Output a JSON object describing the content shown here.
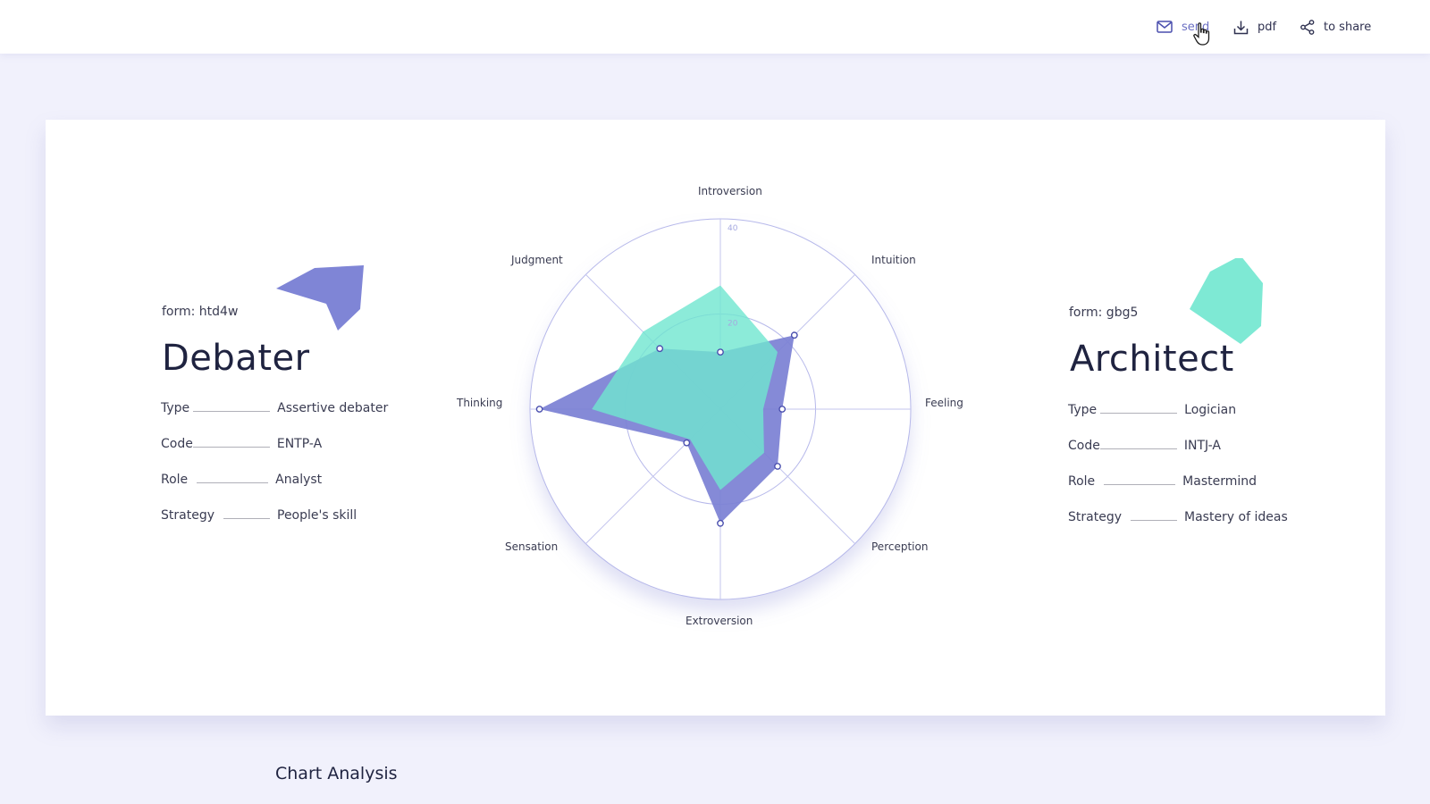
{
  "toolbar": {
    "send_label": "send",
    "pdf_label": "pdf",
    "share_label": "to share"
  },
  "left_profile": {
    "form": "form: htd4w",
    "title": "Debater",
    "rows": [
      {
        "key": "Type",
        "value": "Assertive debater"
      },
      {
        "key": "Code",
        "value": "ENTP-A"
      },
      {
        "key": "Role",
        "value": "Analyst"
      },
      {
        "key": "Strategy",
        "value": "People's skill"
      }
    ],
    "color": "#7f85d6"
  },
  "right_profile": {
    "form": "form: gbg5",
    "title": "Architect",
    "rows": [
      {
        "key": "Type",
        "value": "Logician"
      },
      {
        "key": "Code",
        "value": "INTJ-A"
      },
      {
        "key": "Role",
        "value": "Mastermind"
      },
      {
        "key": "Strategy",
        "value": "Mastery of ideas"
      }
    ],
    "color": "#6fe6cf"
  },
  "chart_data": {
    "type": "radar",
    "categories": [
      "Introversion",
      "Intuition",
      "Feeling",
      "Perception",
      "Extroversion",
      "Sensation",
      "Thinking",
      "Judgment"
    ],
    "tick_labels": [
      "20",
      "40"
    ],
    "rmax": 40,
    "series": [
      {
        "values": [
          12,
          22,
          13,
          17,
          24,
          10,
          38,
          18
        ],
        "color": "#7b80d4"
      },
      {
        "values": [
          26,
          17,
          9,
          13,
          17,
          9,
          27,
          23
        ],
        "color": "#6fe6cf"
      }
    ]
  },
  "analysis": {
    "title": "Chart Analysis"
  }
}
